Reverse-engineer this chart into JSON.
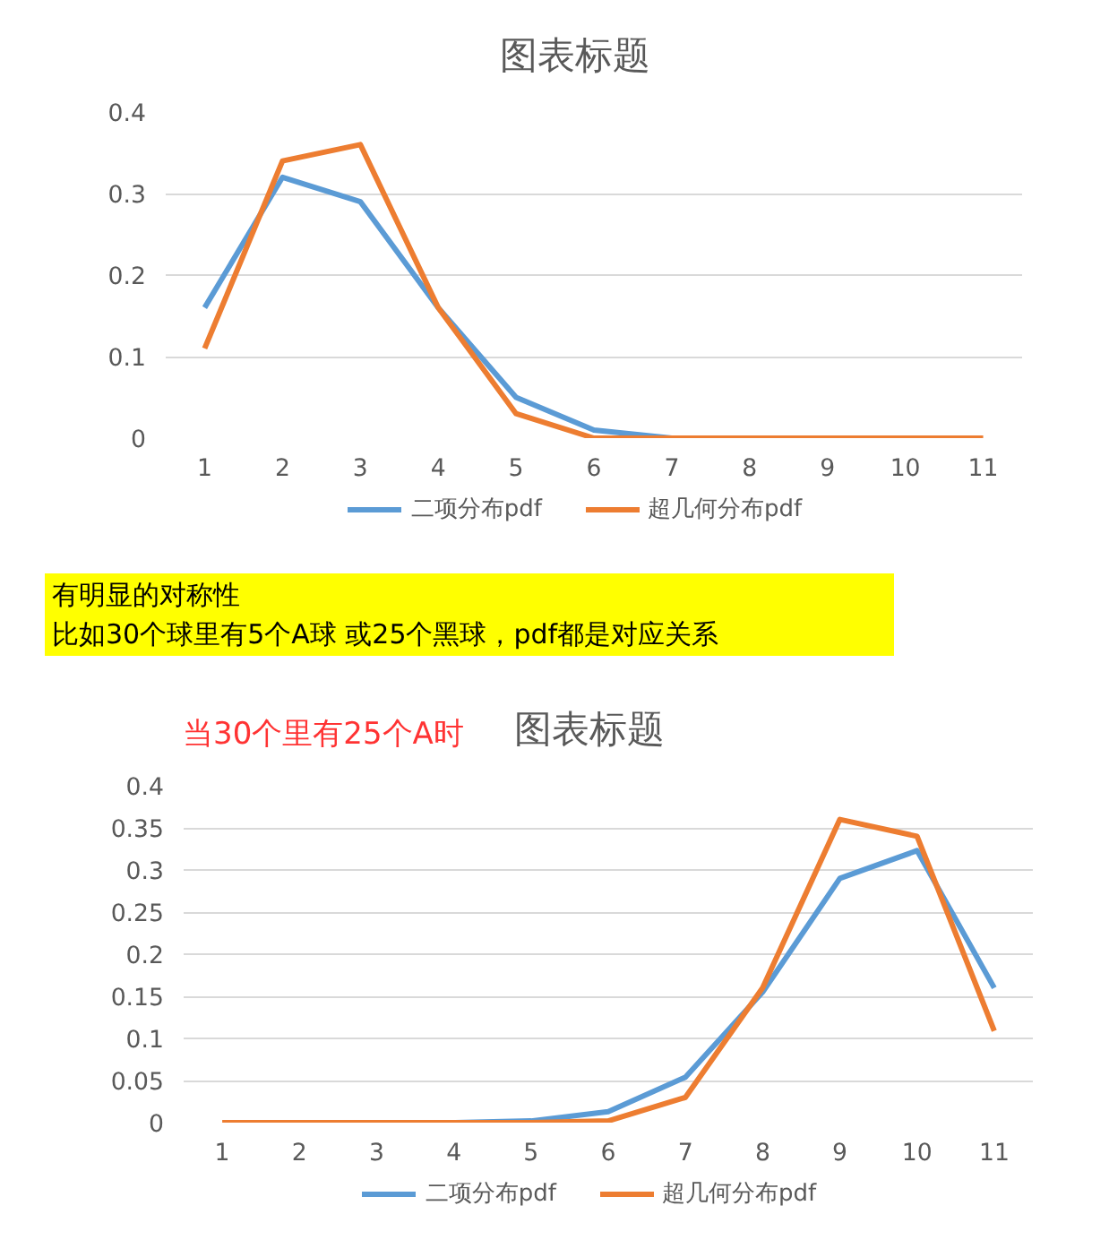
{
  "chart_data": [
    {
      "type": "line",
      "title": "图表标题",
      "categories": [
        "1",
        "2",
        "3",
        "4",
        "5",
        "6",
        "7",
        "8",
        "9",
        "10",
        "11"
      ],
      "ylim": [
        0,
        0.4
      ],
      "yticks": [
        0,
        0.1,
        0.2,
        0.3,
        0.4
      ],
      "grid": "y",
      "legend": "bottom",
      "marker": "none",
      "line_style": "solid",
      "series": [
        {
          "name": "二项分布pdf",
          "color": "#5b9bd5",
          "values": [
            0.16,
            0.32,
            0.29,
            0.16,
            0.05,
            0.01,
            0,
            0,
            null,
            null,
            null
          ]
        },
        {
          "name": "超几何分布pdf",
          "color": "#ed7d31",
          "values": [
            0.11,
            0.34,
            0.36,
            0.16,
            0.03,
            0,
            0,
            0,
            0,
            0,
            0
          ]
        }
      ]
    },
    {
      "type": "other",
      "annotations": [
        "有明显的对称性",
        "比如30个球里有5个A球 或25个黑球，pdf都是对应关系"
      ]
    },
    {
      "type": "line",
      "title": "图表标题",
      "annotations": [
        "当30个里有25个A时"
      ],
      "categories": [
        "1",
        "2",
        "3",
        "4",
        "5",
        "6",
        "7",
        "8",
        "9",
        "10",
        "11"
      ],
      "ylim": [
        0,
        0.4
      ],
      "yticks": [
        0,
        0.05,
        0.1,
        0.15,
        0.2,
        0.25,
        0.3,
        0.35,
        0.4
      ],
      "grid": "y",
      "legend": "bottom",
      "marker": "none",
      "line_style": "solid",
      "series": [
        {
          "name": "二项分布pdf",
          "color": "#5b9bd5",
          "values": [
            null,
            null,
            0,
            0,
            0.002,
            0.013,
            0.054,
            0.155,
            0.29,
            0.323,
            0.16
          ]
        },
        {
          "name": "超几何分布pdf",
          "color": "#ed7d31",
          "values": [
            0,
            0,
            0,
            0,
            0,
            0.002,
            0.03,
            0.16,
            0.36,
            0.34,
            0.109
          ]
        }
      ]
    }
  ]
}
